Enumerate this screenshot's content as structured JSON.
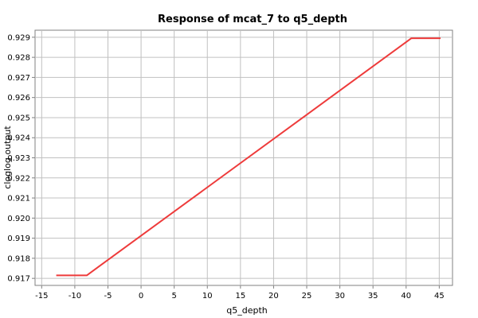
{
  "chart_data": {
    "type": "line",
    "title": "Response of mcat_7 to q5_depth",
    "xlabel": "q5_depth",
    "ylabel": "cloglog output",
    "xlim": [
      -16,
      47
    ],
    "ylim": [
      0.91665,
      0.92935
    ],
    "xticks": [
      -15,
      -10,
      -5,
      0,
      5,
      10,
      15,
      20,
      25,
      30,
      35,
      40,
      45
    ],
    "yticks": [
      0.917,
      0.918,
      0.919,
      0.92,
      0.921,
      0.922,
      0.923,
      0.924,
      0.925,
      0.926,
      0.927,
      0.928,
      0.929
    ],
    "xtick_labels": [
      "-15",
      "-10",
      "-5",
      "0",
      "5",
      "10",
      "15",
      "20",
      "25",
      "30",
      "35",
      "40",
      "45"
    ],
    "ytick_labels": [
      "0.917",
      "0.918",
      "0.919",
      "0.920",
      "0.921",
      "0.922",
      "0.923",
      "0.924",
      "0.925",
      "0.926",
      "0.927",
      "0.928",
      "0.929"
    ],
    "grid": true,
    "series": [
      {
        "color": "#ee3b3b",
        "x": [
          -12.8,
          -8.2,
          40.8,
          45.2
        ],
        "y": [
          0.91715,
          0.91715,
          0.92895,
          0.92895
        ]
      }
    ]
  }
}
